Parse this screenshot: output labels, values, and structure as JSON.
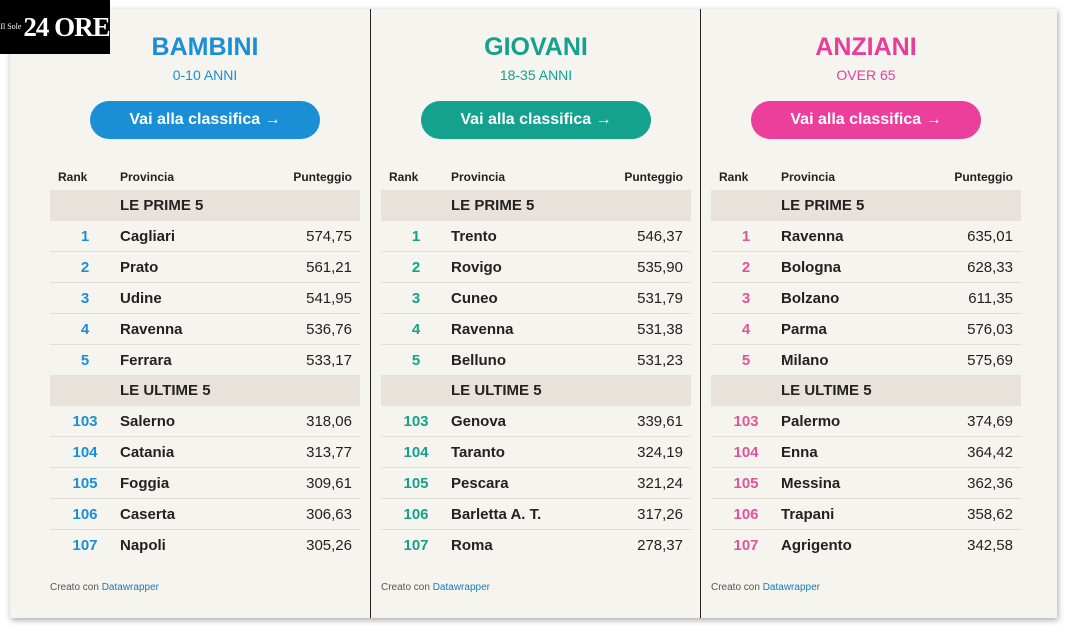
{
  "logo": {
    "small": "Il Sole",
    "big": "24 ORE"
  },
  "headers": {
    "rank": "Rank",
    "provincia": "Provincia",
    "punteggio": "Punteggio"
  },
  "sections": {
    "top": "LE PRIME 5",
    "bottom": "LE ULTIME 5"
  },
  "footer": {
    "prefix": "Creato con",
    "link": "Datawrapper"
  },
  "button_label": "Vai alla classifica →",
  "columns": [
    {
      "title": "BAMBINI",
      "subtitle": "0-10 ANNI",
      "accent": "#1a8fd6",
      "rank_color": "#1a8fd6",
      "button_color": "#1a8fd6",
      "top": [
        {
          "rank": "1",
          "prov": "Cagliari",
          "score": "574,75"
        },
        {
          "rank": "2",
          "prov": "Prato",
          "score": "561,21"
        },
        {
          "rank": "3",
          "prov": "Udine",
          "score": "541,95"
        },
        {
          "rank": "4",
          "prov": "Ravenna",
          "score": "536,76"
        },
        {
          "rank": "5",
          "prov": "Ferrara",
          "score": "533,17"
        }
      ],
      "bottom": [
        {
          "rank": "103",
          "prov": "Salerno",
          "score": "318,06"
        },
        {
          "rank": "104",
          "prov": "Catania",
          "score": "313,77"
        },
        {
          "rank": "105",
          "prov": "Foggia",
          "score": "309,61"
        },
        {
          "rank": "106",
          "prov": "Caserta",
          "score": "306,63"
        },
        {
          "rank": "107",
          "prov": "Napoli",
          "score": "305,26"
        }
      ]
    },
    {
      "title": "GIOVANI",
      "subtitle": "18-35 ANNI",
      "accent": "#14a18e",
      "rank_color": "#14a18e",
      "button_color": "#14a18e",
      "top": [
        {
          "rank": "1",
          "prov": "Trento",
          "score": "546,37"
        },
        {
          "rank": "2",
          "prov": "Rovigo",
          "score": "535,90"
        },
        {
          "rank": "3",
          "prov": "Cuneo",
          "score": "531,79"
        },
        {
          "rank": "4",
          "prov": "Ravenna",
          "score": "531,38"
        },
        {
          "rank": "5",
          "prov": "Belluno",
          "score": "531,23"
        }
      ],
      "bottom": [
        {
          "rank": "103",
          "prov": "Genova",
          "score": "339,61"
        },
        {
          "rank": "104",
          "prov": "Taranto",
          "score": "324,19"
        },
        {
          "rank": "105",
          "prov": "Pescara",
          "score": "321,24"
        },
        {
          "rank": "106",
          "prov": "Barletta A. T.",
          "score": "317,26"
        },
        {
          "rank": "107",
          "prov": "Roma",
          "score": "278,37"
        }
      ]
    },
    {
      "title": "ANZIANI",
      "subtitle": "OVER 65",
      "accent": "#e83e9a",
      "rank_color": "#e05597",
      "button_color": "#ec3f9c",
      "top": [
        {
          "rank": "1",
          "prov": "Ravenna",
          "score": "635,01"
        },
        {
          "rank": "2",
          "prov": "Bologna",
          "score": "628,33"
        },
        {
          "rank": "3",
          "prov": "Bolzano",
          "score": "611,35"
        },
        {
          "rank": "4",
          "prov": "Parma",
          "score": "576,03"
        },
        {
          "rank": "5",
          "prov": "Milano",
          "score": "575,69"
        }
      ],
      "bottom": [
        {
          "rank": "103",
          "prov": "Palermo",
          "score": "374,69"
        },
        {
          "rank": "104",
          "prov": "Enna",
          "score": "364,42"
        },
        {
          "rank": "105",
          "prov": "Messina",
          "score": "362,36"
        },
        {
          "rank": "106",
          "prov": "Trapani",
          "score": "358,62"
        },
        {
          "rank": "107",
          "prov": "Agrigento",
          "score": "342,58"
        }
      ]
    }
  ]
}
